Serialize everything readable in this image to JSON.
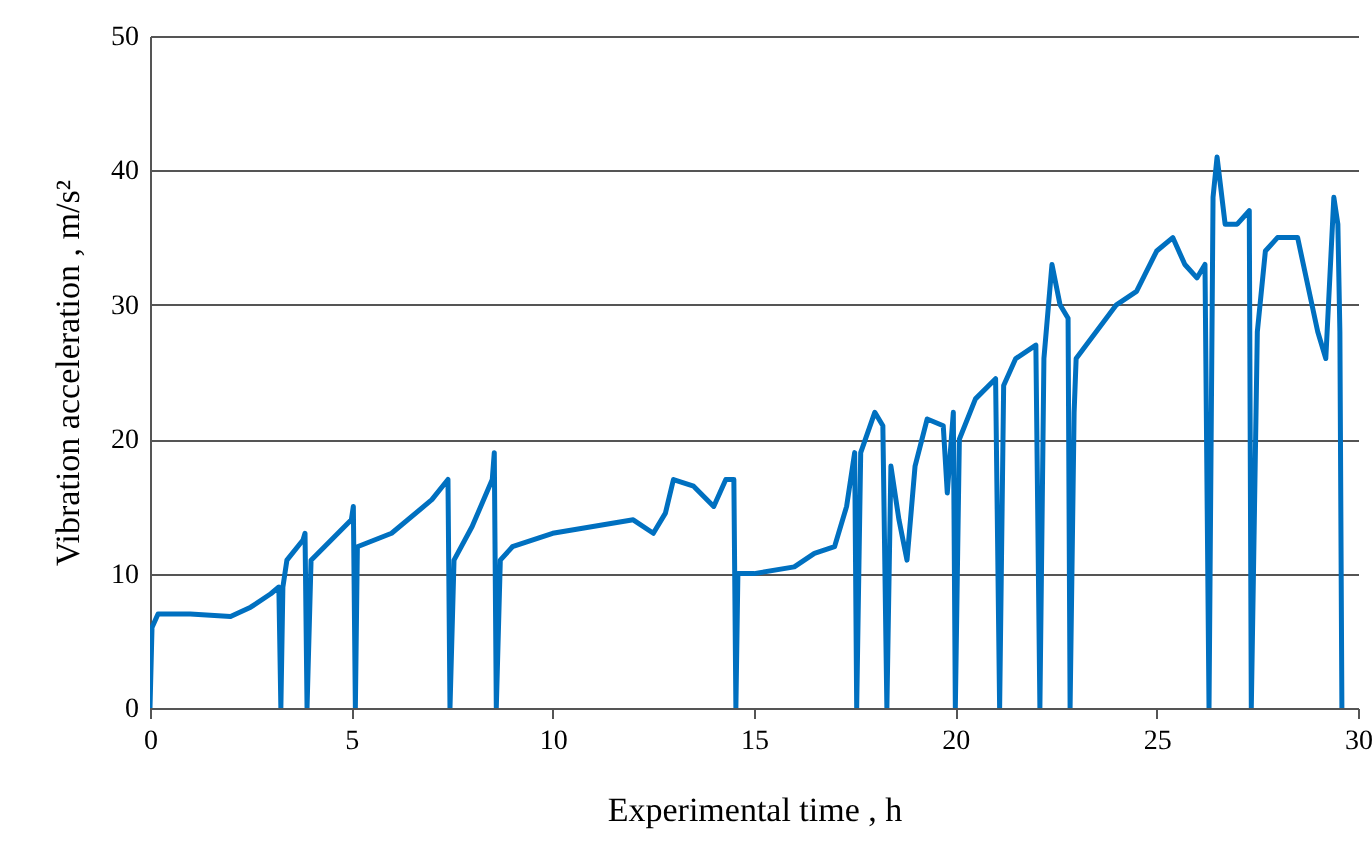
{
  "chart_data": {
    "type": "line",
    "xlabel": "Experimental time , h",
    "ylabel": "Vibration acceleration , m/s²",
    "xlim": [
      0,
      30
    ],
    "xticks": [
      0,
      5,
      10,
      15,
      20,
      25,
      30
    ],
    "ylim": [
      0,
      50
    ],
    "yticks": [
      0,
      10,
      20,
      30,
      40,
      50
    ],
    "grid": "y",
    "marker": "none",
    "line_style": "solid",
    "series": [
      {
        "color": "#0070c0",
        "x": [
          0,
          0.05,
          0.2,
          1,
          2,
          2.5,
          3,
          3.2,
          3.25,
          3.3,
          3.4,
          3.8,
          3.85,
          3.9,
          4.0,
          4.5,
          5.0,
          5.05,
          5.1,
          5.15,
          6,
          7,
          7.4,
          7.45,
          7.55,
          8,
          8.5,
          8.55,
          8.6,
          8.7,
          9,
          10,
          11,
          12,
          12.5,
          12.8,
          13,
          13.5,
          14,
          14.3,
          14.5,
          14.55,
          14.6,
          15,
          16,
          16.5,
          17,
          17.3,
          17.5,
          17.55,
          17.65,
          18,
          18.2,
          18.3,
          18.4,
          18.6,
          18.8,
          19,
          19.3,
          19.7,
          19.8,
          19.95,
          20.0,
          20.1,
          20.5,
          21,
          21.1,
          21.2,
          21.5,
          22,
          22.1,
          22.2,
          22.4,
          22.6,
          22.8,
          22.85,
          22.95,
          23,
          24,
          24.5,
          25,
          25.4,
          25.7,
          26,
          26.2,
          26.3,
          26.4,
          26.5,
          26.7,
          27,
          27.3,
          27.35,
          27.5,
          27.7,
          28,
          28.5,
          29,
          29.2,
          29.3,
          29.4,
          29.5,
          29.55,
          29.6
        ],
        "values": [
          0,
          6,
          7,
          7,
          6.8,
          7.5,
          8.5,
          9,
          0,
          9,
          11,
          12.5,
          13,
          0,
          11,
          12.5,
          14,
          15,
          0,
          12,
          13,
          15.5,
          17,
          0,
          11,
          13.5,
          17,
          19,
          0,
          11,
          12,
          13,
          13.5,
          14,
          13,
          14.5,
          17,
          16.5,
          15,
          17,
          17,
          0,
          10,
          10,
          10.5,
          11.5,
          12,
          15,
          19,
          0,
          19,
          22,
          21,
          0,
          18,
          14,
          11,
          18,
          21.5,
          21,
          16,
          22,
          0,
          20,
          23,
          24.5,
          0,
          24,
          26,
          27,
          0,
          26,
          33,
          30,
          29,
          0,
          22,
          26,
          30,
          31,
          34,
          35,
          33,
          32,
          33,
          0,
          38,
          41,
          36,
          36,
          37,
          0,
          28,
          34,
          35,
          35,
          28,
          26,
          32,
          38,
          36,
          28,
          0
        ]
      }
    ]
  }
}
